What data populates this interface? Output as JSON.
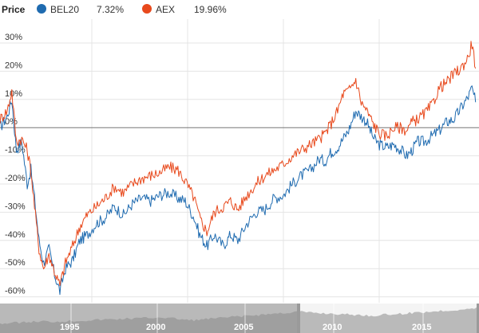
{
  "legend": {
    "price_label": "Price",
    "series": [
      {
        "name": "BEL20",
        "change": "7.32%",
        "color": "#1f6bb0"
      },
      {
        "name": "AEX",
        "change": "19.96%",
        "color": "#e8491c"
      }
    ]
  },
  "chart_data": {
    "type": "line",
    "yticks": [
      "30%",
      "20%",
      "10%",
      "0%",
      "-10%",
      "-20%",
      "-30%",
      "-40%",
      "-50%",
      "-60%"
    ],
    "ylim": [
      -62,
      35
    ],
    "xlim": [
      1990.2,
      2016.5
    ],
    "grid": true,
    "navigator_ticks": [
      "1995",
      "2000",
      "2005",
      "2010",
      "2015"
    ],
    "series": [
      {
        "name": "BEL20",
        "color": "#1f6bb0",
        "points": [
          [
            1990.2,
            0
          ],
          [
            1990.6,
            4
          ],
          [
            1990.85,
            10
          ],
          [
            1991.1,
            -8
          ],
          [
            1991.4,
            -5
          ],
          [
            1991.7,
            -20
          ],
          [
            1991.9,
            -15
          ],
          [
            1992.1,
            -25
          ],
          [
            1992.35,
            -40
          ],
          [
            1992.6,
            -48
          ],
          [
            1992.9,
            -43
          ],
          [
            1993.2,
            -52
          ],
          [
            1993.5,
            -58
          ],
          [
            1993.8,
            -50
          ],
          [
            1994.2,
            -47
          ],
          [
            1994.6,
            -40
          ],
          [
            1995.0,
            -38
          ],
          [
            1995.5,
            -34
          ],
          [
            1996.0,
            -32
          ],
          [
            1996.5,
            -28
          ],
          [
            1997.0,
            -31
          ],
          [
            1997.5,
            -27
          ],
          [
            1998.0,
            -25
          ],
          [
            1998.5,
            -26
          ],
          [
            1999.0,
            -24
          ],
          [
            1999.5,
            -23
          ],
          [
            2000.0,
            -25
          ],
          [
            2000.4,
            -26
          ],
          [
            2000.9,
            -32
          ],
          [
            2001.2,
            -38
          ],
          [
            2001.6,
            -42
          ],
          [
            2002.0,
            -38
          ],
          [
            2002.5,
            -42
          ],
          [
            2002.9,
            -38
          ],
          [
            2003.3,
            -40
          ],
          [
            2003.8,
            -34
          ],
          [
            2004.3,
            -30
          ],
          [
            2004.8,
            -29
          ],
          [
            2005.3,
            -25
          ],
          [
            2005.8,
            -24
          ],
          [
            2006.3,
            -20
          ],
          [
            2006.8,
            -17
          ],
          [
            2007.3,
            -15
          ],
          [
            2007.8,
            -11
          ],
          [
            2008.1,
            -12
          ],
          [
            2008.4,
            -9
          ],
          [
            2008.8,
            -7
          ],
          [
            2009.1,
            -4
          ],
          [
            2009.4,
            -1
          ],
          [
            2009.8,
            6
          ],
          [
            2010.1,
            4
          ],
          [
            2010.4,
            2
          ],
          [
            2010.8,
            -4
          ],
          [
            2011.1,
            -6
          ],
          [
            2011.5,
            -7
          ],
          [
            2011.9,
            -6
          ],
          [
            2012.3,
            -8
          ],
          [
            2012.6,
            -10
          ],
          [
            2012.9,
            -8
          ],
          [
            2013.2,
            -5
          ],
          [
            2013.6,
            -5
          ],
          [
            2014.0,
            -3
          ],
          [
            2014.4,
            -1
          ],
          [
            2014.8,
            2
          ],
          [
            2015.2,
            3
          ],
          [
            2015.6,
            7
          ],
          [
            2016.0,
            11
          ],
          [
            2016.2,
            14
          ],
          [
            2016.4,
            9
          ]
        ]
      },
      {
        "name": "AEX",
        "color": "#e8491c",
        "points": [
          [
            1990.2,
            3
          ],
          [
            1990.6,
            6
          ],
          [
            1990.85,
            13
          ],
          [
            1991.1,
            -5
          ],
          [
            1991.4,
            -4
          ],
          [
            1991.7,
            -8
          ],
          [
            1991.9,
            -15
          ],
          [
            1992.1,
            -28
          ],
          [
            1992.35,
            -43
          ],
          [
            1992.6,
            -50
          ],
          [
            1992.9,
            -45
          ],
          [
            1993.2,
            -51
          ],
          [
            1993.5,
            -56
          ],
          [
            1993.8,
            -48
          ],
          [
            1994.2,
            -42
          ],
          [
            1994.6,
            -35
          ],
          [
            1995.0,
            -31
          ],
          [
            1995.5,
            -28
          ],
          [
            1996.0,
            -25
          ],
          [
            1996.5,
            -21
          ],
          [
            1997.0,
            -23
          ],
          [
            1997.5,
            -20
          ],
          [
            1998.0,
            -18
          ],
          [
            1998.5,
            -17
          ],
          [
            1999.0,
            -16
          ],
          [
            1999.5,
            -14
          ],
          [
            2000.0,
            -15
          ],
          [
            2000.4,
            -19
          ],
          [
            2000.9,
            -25
          ],
          [
            2001.2,
            -32
          ],
          [
            2001.6,
            -37
          ],
          [
            2002.0,
            -30
          ],
          [
            2002.5,
            -28
          ],
          [
            2002.9,
            -26
          ],
          [
            2003.3,
            -29
          ],
          [
            2003.8,
            -24
          ],
          [
            2004.3,
            -20
          ],
          [
            2004.8,
            -17
          ],
          [
            2005.3,
            -15
          ],
          [
            2005.8,
            -13
          ],
          [
            2006.3,
            -10
          ],
          [
            2006.8,
            -8
          ],
          [
            2007.3,
            -6
          ],
          [
            2007.8,
            -4
          ],
          [
            2008.1,
            -2
          ],
          [
            2008.4,
            1
          ],
          [
            2008.8,
            6
          ],
          [
            2009.1,
            12
          ],
          [
            2009.4,
            13
          ],
          [
            2009.8,
            17
          ],
          [
            2010.1,
            9
          ],
          [
            2010.4,
            6
          ],
          [
            2010.8,
            1
          ],
          [
            2011.1,
            -2
          ],
          [
            2011.5,
            -3
          ],
          [
            2011.9,
            0
          ],
          [
            2012.3,
            0
          ],
          [
            2012.6,
            -1
          ],
          [
            2012.9,
            2
          ],
          [
            2013.2,
            3
          ],
          [
            2013.6,
            5
          ],
          [
            2014.0,
            8
          ],
          [
            2014.4,
            14
          ],
          [
            2014.8,
            16
          ],
          [
            2015.2,
            19
          ],
          [
            2015.6,
            21
          ],
          [
            2016.0,
            25
          ],
          [
            2016.2,
            30
          ],
          [
            2016.4,
            21
          ]
        ]
      }
    ]
  }
}
